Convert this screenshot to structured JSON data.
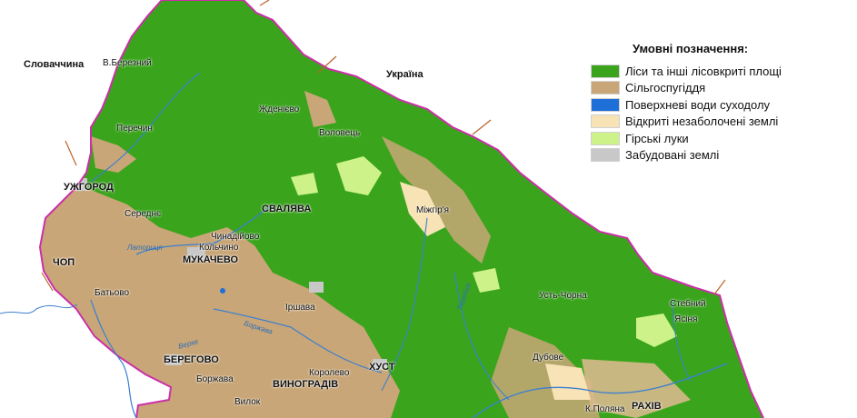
{
  "legend": {
    "title": "Умовні позначення:",
    "items": [
      {
        "label": "Ліси та інші лісовкриті площі",
        "color": "#3aa51c"
      },
      {
        "label": "Сільгоспугіддя",
        "color": "#c9a677"
      },
      {
        "label": "Поверхневі води суходолу",
        "color": "#1f6fd9"
      },
      {
        "label": "Відкриті незаболочені землі",
        "color": "#f7e3b5"
      },
      {
        "label": "Гірські луки",
        "color": "#cdf28a"
      },
      {
        "label": "Забудовані землі",
        "color": "#c8c8c8"
      }
    ]
  },
  "countries": {
    "slovakia": "Словаччина",
    "ukraine": "Україна"
  },
  "places": {
    "v_bereznyi": "В.Березний",
    "perechyn": "Перечин",
    "uzhhorod": "УЖГОРОД",
    "serednie": "Середнє",
    "chop": "ЧОП",
    "batovo": "Батьово",
    "zhdenievo": "Жденієво",
    "volovets": "Воловець",
    "svaliava": "СВАЛЯВА",
    "chynadiiovo": "Чинадійово",
    "kolchyno": "Кольчино",
    "mukachevo": "МУКАЧЕВО",
    "irshava": "Іршава",
    "berehove": "БЕРЕГОВО",
    "borzhava": "Боржава",
    "vylok": "Вилок",
    "vynohradiv": "ВИНОГРАДІВ",
    "korolevo": "Королево",
    "khust": "ХУСТ",
    "mizhhiria": "Міжгір'я",
    "ust_chorna": "Усть-Чорна",
    "dubove": "Дубове",
    "stebnyi": "Стебний",
    "yasinia": "Ясіня",
    "k_poliana": "К.Поляна",
    "rakhiv": "РАХІВ"
  },
  "rivers": {
    "latorytsia": "Латориця",
    "borzhava": "Боржава",
    "verke": "Верке",
    "tereblia": "Теребля"
  }
}
